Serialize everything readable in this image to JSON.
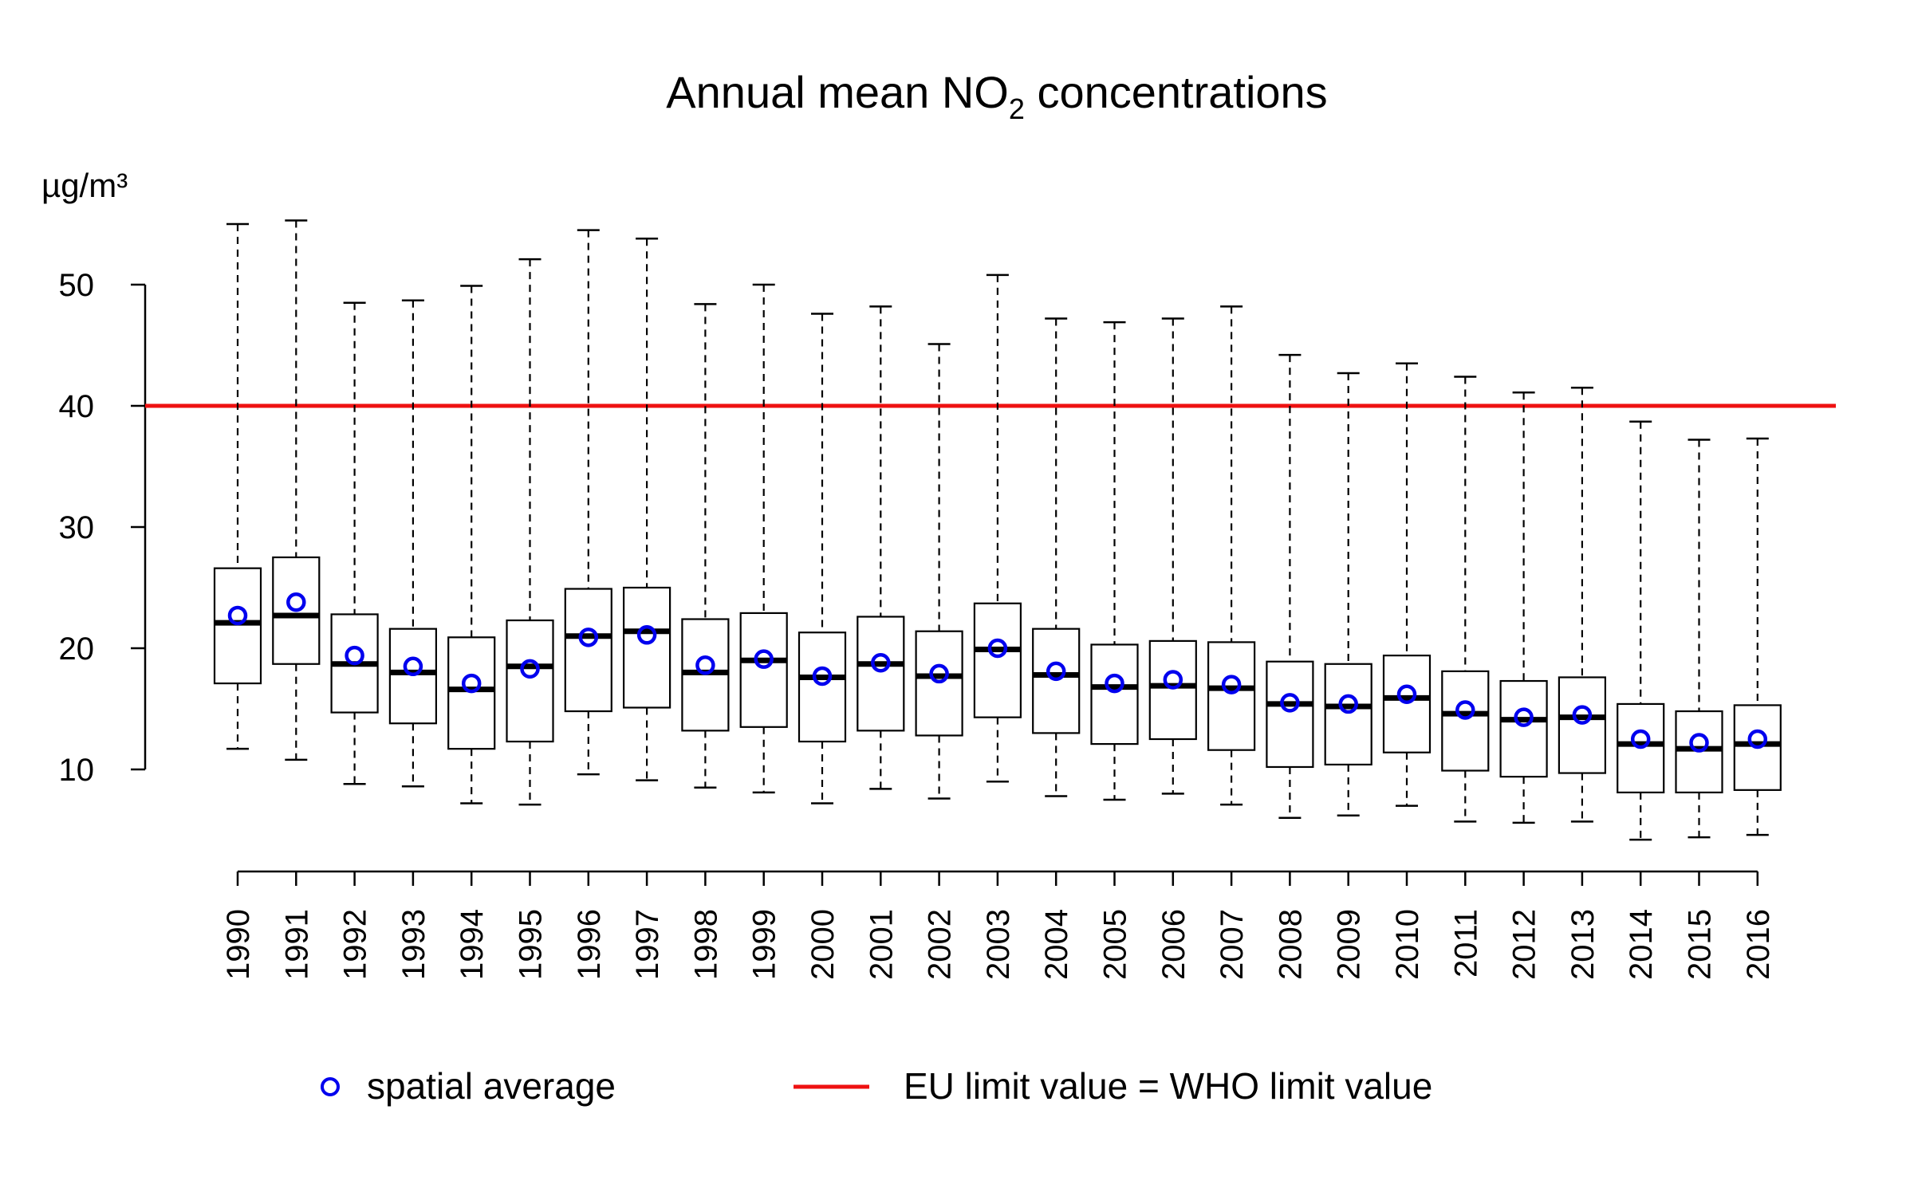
{
  "chart_data": {
    "type": "boxplot",
    "title_main": "Annual mean NO",
    "title_sub": "2",
    "title_rest": " concentrations",
    "ylabel": "µg/m³",
    "ylim": [
      3,
      58
    ],
    "yticks": [
      10,
      20,
      30,
      40,
      50
    ],
    "limit_line": {
      "value": 40,
      "label": "EU limit value = WHO limit value",
      "color": "#ee1111"
    },
    "mean_marker": {
      "label": "spatial average",
      "color": "#0000ee"
    },
    "box_color": "#000000",
    "categories": [
      "1990",
      "1991",
      "1992",
      "1993",
      "1994",
      "1995",
      "1996",
      "1997",
      "1998",
      "1999",
      "2000",
      "2001",
      "2002",
      "2003",
      "2004",
      "2005",
      "2006",
      "2007",
      "2008",
      "2009",
      "2010",
      "2011",
      "2012",
      "2013",
      "2014",
      "2015",
      "2016"
    ],
    "boxes": [
      {
        "min": 11.7,
        "q1": 17.1,
        "median": 22.1,
        "q3": 26.6,
        "max": 55.0,
        "mean": 22.7
      },
      {
        "min": 10.8,
        "q1": 18.7,
        "median": 22.7,
        "q3": 27.5,
        "max": 55.3,
        "mean": 23.8
      },
      {
        "min": 8.8,
        "q1": 14.7,
        "median": 18.7,
        "q3": 22.8,
        "max": 48.5,
        "mean": 19.4
      },
      {
        "min": 8.6,
        "q1": 13.8,
        "median": 18.0,
        "q3": 21.6,
        "max": 48.7,
        "mean": 18.5
      },
      {
        "min": 7.2,
        "q1": 11.7,
        "median": 16.6,
        "q3": 20.9,
        "max": 49.9,
        "mean": 17.1
      },
      {
        "min": 7.1,
        "q1": 12.3,
        "median": 18.5,
        "q3": 22.3,
        "max": 52.1,
        "mean": 18.3
      },
      {
        "min": 9.6,
        "q1": 14.8,
        "median": 21.0,
        "q3": 24.9,
        "max": 54.5,
        "mean": 20.9
      },
      {
        "min": 9.1,
        "q1": 15.1,
        "median": 21.4,
        "q3": 25.0,
        "max": 53.8,
        "mean": 21.1
      },
      {
        "min": 8.5,
        "q1": 13.2,
        "median": 18.0,
        "q3": 22.4,
        "max": 48.4,
        "mean": 18.6
      },
      {
        "min": 8.1,
        "q1": 13.5,
        "median": 19.0,
        "q3": 22.9,
        "max": 50.0,
        "mean": 19.1
      },
      {
        "min": 7.2,
        "q1": 12.3,
        "median": 17.6,
        "q3": 21.3,
        "max": 47.6,
        "mean": 17.7
      },
      {
        "min": 8.4,
        "q1": 13.2,
        "median": 18.7,
        "q3": 22.6,
        "max": 48.2,
        "mean": 18.8
      },
      {
        "min": 7.6,
        "q1": 12.8,
        "median": 17.7,
        "q3": 21.4,
        "max": 45.1,
        "mean": 17.9
      },
      {
        "min": 9.0,
        "q1": 14.3,
        "median": 19.9,
        "q3": 23.7,
        "max": 50.8,
        "mean": 20.0
      },
      {
        "min": 7.8,
        "q1": 13.0,
        "median": 17.8,
        "q3": 21.6,
        "max": 47.2,
        "mean": 18.1
      },
      {
        "min": 7.5,
        "q1": 12.1,
        "median": 16.8,
        "q3": 20.3,
        "max": 46.9,
        "mean": 17.1
      },
      {
        "min": 8.0,
        "q1": 12.5,
        "median": 16.9,
        "q3": 20.6,
        "max": 47.2,
        "mean": 17.4
      },
      {
        "min": 7.1,
        "q1": 11.6,
        "median": 16.7,
        "q3": 20.5,
        "max": 48.2,
        "mean": 17.0
      },
      {
        "min": 6.0,
        "q1": 10.2,
        "median": 15.4,
        "q3": 18.9,
        "max": 44.2,
        "mean": 15.5
      },
      {
        "min": 6.2,
        "q1": 10.4,
        "median": 15.2,
        "q3": 18.7,
        "max": 42.7,
        "mean": 15.4
      },
      {
        "min": 7.0,
        "q1": 11.4,
        "median": 15.9,
        "q3": 19.4,
        "max": 43.5,
        "mean": 16.2
      },
      {
        "min": 5.7,
        "q1": 9.9,
        "median": 14.6,
        "q3": 18.1,
        "max": 42.4,
        "mean": 14.9
      },
      {
        "min": 5.6,
        "q1": 9.4,
        "median": 14.1,
        "q3": 17.3,
        "max": 41.1,
        "mean": 14.3
      },
      {
        "min": 5.7,
        "q1": 9.7,
        "median": 14.3,
        "q3": 17.6,
        "max": 41.5,
        "mean": 14.5
      },
      {
        "min": 4.2,
        "q1": 8.1,
        "median": 12.1,
        "q3": 15.4,
        "max": 38.7,
        "mean": 12.5
      },
      {
        "min": 4.4,
        "q1": 8.1,
        "median": 11.7,
        "q3": 14.8,
        "max": 37.2,
        "mean": 12.2
      },
      {
        "min": 4.6,
        "q1": 8.3,
        "median": 12.1,
        "q3": 15.3,
        "max": 37.3,
        "mean": 12.5
      }
    ]
  }
}
